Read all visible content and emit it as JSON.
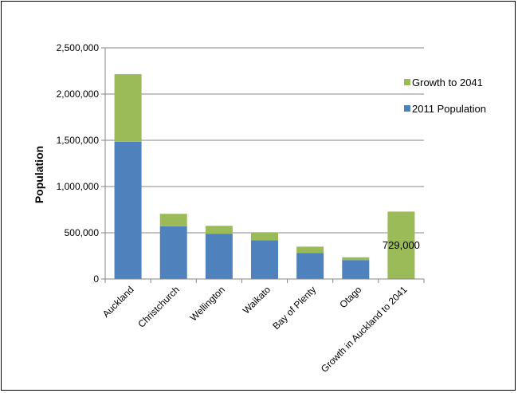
{
  "chart_data": {
    "type": "bar",
    "stacked": true,
    "title": "",
    "xlabel": "",
    "ylabel": "Population",
    "ylim": [
      0,
      2500000
    ],
    "yticks": [
      0,
      500000,
      1000000,
      1500000,
      2000000,
      2500000
    ],
    "ytick_labels": [
      "0",
      "500,000",
      "1,000,000",
      "1,500,000",
      "2,000,000",
      "2,500,000"
    ],
    "grid": true,
    "legend": "right",
    "categories": [
      "Auckland",
      "Christchurch",
      "Wellington",
      "Waikato",
      "Bay of Plenty",
      "Otago",
      "Growth in Auckland to 2041"
    ],
    "series": [
      {
        "name": "2011 Population",
        "color": "#4f81bd",
        "values": [
          1485000,
          570000,
          490000,
          420000,
          280000,
          205000,
          0
        ]
      },
      {
        "name": "Growth to 2041",
        "color": "#9bbb59",
        "values": [
          730000,
          135000,
          85000,
          80000,
          70000,
          30000,
          729000
        ]
      }
    ],
    "legend_order": [
      "Growth to 2041",
      "2011 Population"
    ],
    "annotations": [
      {
        "category": "Growth in Auckland to 2041",
        "text": "729,000"
      }
    ]
  }
}
